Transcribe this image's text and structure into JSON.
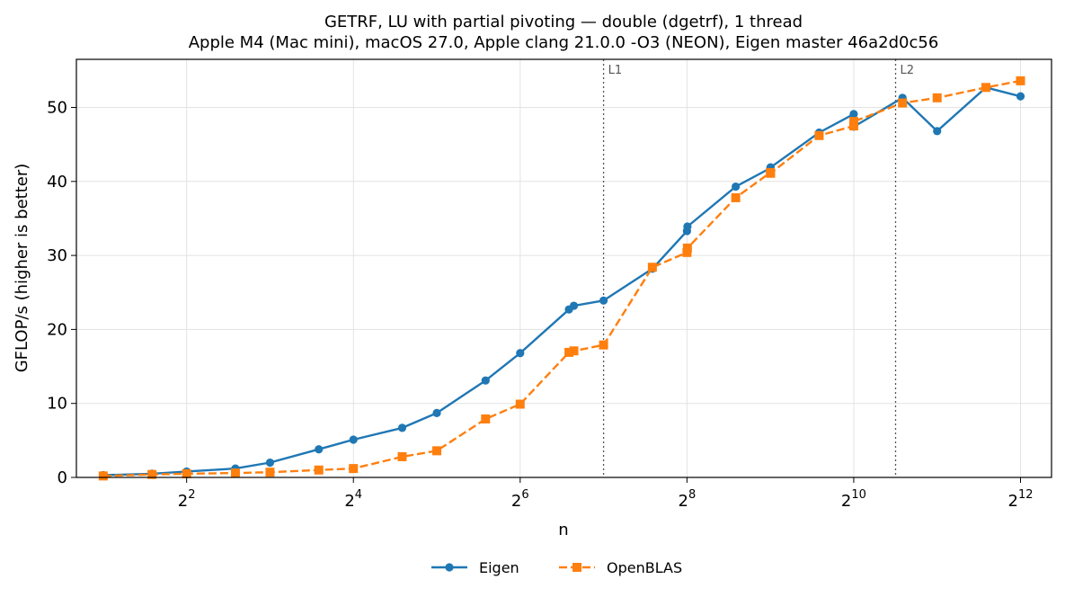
{
  "chart_data": {
    "type": "line",
    "title": "GETRF, LU with partial pivoting — double (dgetrf), 1 thread",
    "subtitle": "Apple M4 (Mac mini), macOS 27.0, Apple clang 21.0.0 -O3 (NEON), Eigen master 46a2d0c56",
    "xlabel": "n",
    "ylabel": "GFLOP/s (higher is better)",
    "xscale": "log2",
    "xlim": [
      1.6,
      5300
    ],
    "ylim": [
      0,
      56.5
    ],
    "grid": true,
    "legend": "bottom-center",
    "x_ticks": [
      {
        "value": 4,
        "base": "2",
        "exp": "2"
      },
      {
        "value": 16,
        "base": "2",
        "exp": "4"
      },
      {
        "value": 64,
        "base": "2",
        "exp": "6"
      },
      {
        "value": 256,
        "base": "2",
        "exp": "8"
      },
      {
        "value": 1024,
        "base": "2",
        "exp": "10"
      },
      {
        "value": 4096,
        "base": "2",
        "exp": "12"
      }
    ],
    "y_ticks": [
      0,
      10,
      20,
      30,
      40,
      50
    ],
    "annotations": [
      {
        "label": "L1",
        "x": 128
      },
      {
        "label": "L2",
        "x": 1450
      }
    ],
    "series": [
      {
        "name": "Eigen",
        "color": "#1f77b4",
        "marker": "circle",
        "linestyle": "solid",
        "x": [
          2,
          3,
          4,
          6,
          8,
          12,
          16,
          24,
          32,
          48,
          64,
          96,
          100,
          128,
          192,
          256,
          257,
          384,
          512,
          513,
          768,
          1024,
          1025,
          1536,
          2048,
          3072,
          4096
        ],
        "y": [
          0.3,
          0.5,
          0.8,
          1.2,
          2.0,
          3.8,
          5.1,
          6.7,
          8.7,
          13.1,
          16.8,
          22.7,
          23.2,
          23.9,
          28.2,
          33.3,
          33.9,
          39.3,
          41.8,
          41.9,
          46.6,
          49.1,
          47.4,
          51.3,
          46.8,
          52.7,
          51.5
        ]
      },
      {
        "name": "OpenBLAS",
        "color": "#ff7f0e",
        "marker": "square",
        "linestyle": "dashed",
        "x": [
          2,
          3,
          4,
          6,
          8,
          12,
          16,
          24,
          32,
          48,
          64,
          96,
          100,
          128,
          192,
          256,
          257,
          384,
          512,
          513,
          768,
          1024,
          1025,
          1536,
          2048,
          3072,
          4096
        ],
        "y": [
          0.2,
          0.4,
          0.5,
          0.6,
          0.7,
          1.0,
          1.2,
          2.8,
          3.6,
          7.9,
          9.9,
          16.9,
          17.1,
          17.9,
          28.4,
          30.4,
          31.0,
          37.8,
          41.2,
          41.1,
          46.2,
          47.5,
          48.1,
          50.6,
          51.3,
          52.7,
          53.6
        ]
      }
    ]
  }
}
